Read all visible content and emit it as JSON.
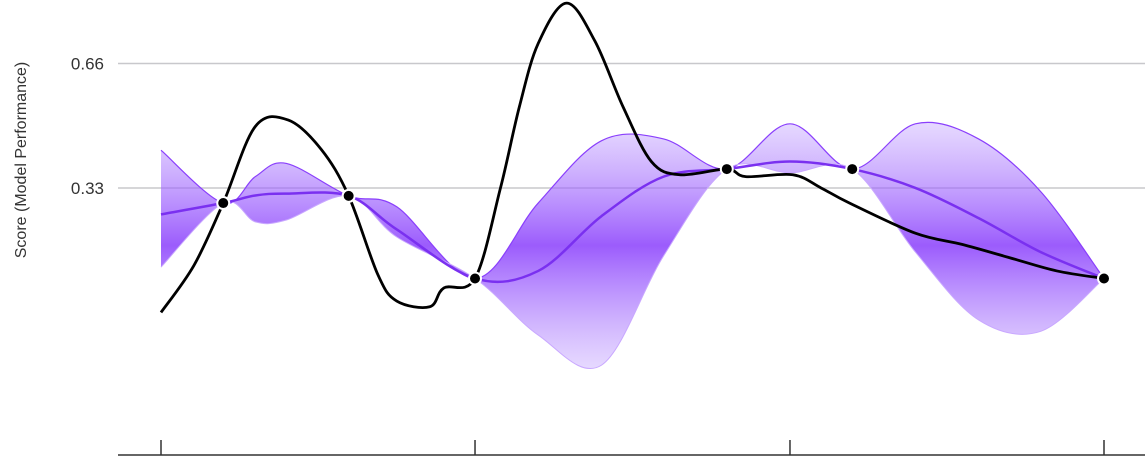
{
  "chart_data": {
    "type": "line",
    "title": "",
    "xlabel": "",
    "ylabel": "Score (Model Performance)",
    "ylim": [
      -0.37,
      0.815
    ],
    "xlim": [
      0,
      1
    ],
    "y_ticks": [
      {
        "value": 0.33,
        "label": "0.33"
      },
      {
        "value": 0.66,
        "label": "0.66"
      }
    ],
    "x_ticks": [
      0,
      0.333,
      0.667,
      1
    ],
    "grid": "horizontal",
    "series": [
      {
        "kind": "line",
        "color": "#000000",
        "x": [
          0.0,
          0.035,
          0.066,
          0.1,
          0.135,
          0.17,
          0.199,
          0.23,
          0.25,
          0.285,
          0.3,
          0.333,
          0.36,
          0.38,
          0.4,
          0.43,
          0.46,
          0.49,
          0.52,
          0.55,
          0.6,
          0.62,
          0.67,
          0.7,
          0.73,
          0.8,
          0.85,
          0.9,
          0.95,
          1.0
        ],
        "y": [
          0.0,
          0.125,
          0.29,
          0.493,
          0.51,
          0.432,
          0.309,
          0.1,
          0.03,
          0.015,
          0.065,
          0.09,
          0.33,
          0.545,
          0.713,
          0.82,
          0.72,
          0.545,
          0.4,
          0.365,
          0.38,
          0.36,
          0.365,
          0.33,
          0.29,
          0.21,
          0.18,
          0.145,
          0.11,
          0.09
        ]
      },
      {
        "kind": "band",
        "color": "#8a3ffc",
        "x": [
          0.0,
          0.066,
          0.1,
          0.133,
          0.199,
          0.25,
          0.333,
          0.4,
          0.467,
          0.533,
          0.6,
          0.667,
          0.733,
          0.8,
          0.867,
          0.933,
          1.0
        ],
        "mean": [
          0.26,
          0.29,
          0.31,
          0.315,
          0.309,
          0.22,
          0.09,
          0.11,
          0.255,
          0.36,
          0.38,
          0.4,
          0.38,
          0.33,
          0.25,
          0.16,
          0.09
        ],
        "lower": [
          0.12,
          0.29,
          0.24,
          0.245,
          0.309,
          0.2,
          0.09,
          -0.06,
          -0.14,
          0.15,
          0.38,
          0.37,
          0.38,
          0.16,
          -0.02,
          -0.05,
          0.09
        ],
        "upper": [
          0.43,
          0.29,
          0.36,
          0.395,
          0.309,
          0.28,
          0.09,
          0.29,
          0.455,
          0.46,
          0.38,
          0.5,
          0.38,
          0.5,
          0.46,
          0.32,
          0.09
        ]
      }
    ],
    "points": [
      {
        "x": 0.066,
        "y": 0.29
      },
      {
        "x": 0.199,
        "y": 0.309
      },
      {
        "x": 0.333,
        "y": 0.09
      },
      {
        "x": 0.6,
        "y": 0.38
      },
      {
        "x": 0.733,
        "y": 0.38
      },
      {
        "x": 1.0,
        "y": 0.09
      }
    ]
  }
}
